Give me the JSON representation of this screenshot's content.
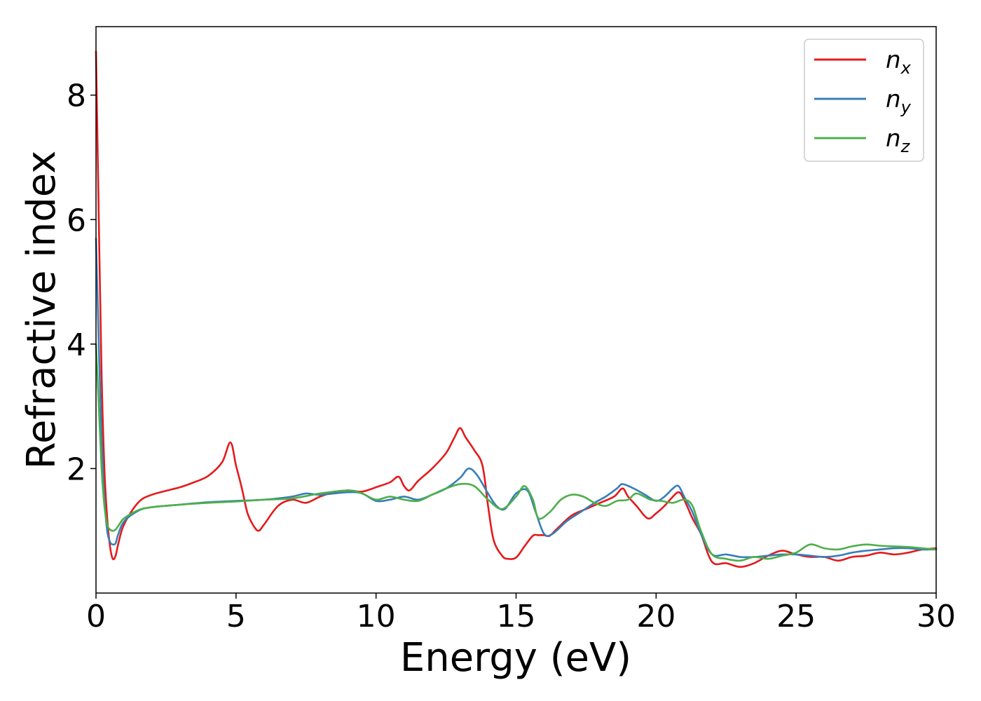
{
  "chart_data": {
    "type": "line",
    "title": "",
    "xlabel": "Energy (eV)",
    "ylabel": "Refractive index",
    "xlim": [
      0,
      30
    ],
    "ylim": [
      0,
      9.1
    ],
    "xticks": [
      0,
      5,
      10,
      15,
      20,
      25,
      30
    ],
    "xtick_labels": [
      "0",
      "5",
      "10",
      "15",
      "20",
      "25",
      "30"
    ],
    "yticks": [
      2,
      4,
      6,
      8
    ],
    "ytick_labels": [
      "2",
      "4",
      "6",
      "8"
    ],
    "grid": false,
    "legend_position": "top-right",
    "series": [
      {
        "name": "n",
        "subscript": "x",
        "color": "#e41a1c",
        "x": [
          0,
          0.1,
          0.2,
          0.3,
          0.4,
          0.5,
          0.6,
          0.7,
          0.8,
          1.0,
          1.5,
          2,
          3,
          3.5,
          4,
          4.5,
          4.8,
          5.0,
          5.2,
          5.4,
          5.6,
          5.8,
          6.0,
          6.5,
          7,
          7.5,
          8,
          8.5,
          9,
          9.5,
          10,
          10.5,
          10.8,
          11,
          11.2,
          11.5,
          12,
          12.5,
          12.8,
          13.0,
          13.2,
          13.5,
          13.8,
          14,
          14.2,
          14.5,
          14.7,
          15,
          15.3,
          15.6,
          15.8,
          16.0,
          16.2,
          16.5,
          17,
          17.5,
          18,
          18.5,
          18.8,
          19,
          19.3,
          19.7,
          20,
          20.3,
          20.5,
          20.8,
          21,
          21.3,
          21.6,
          22,
          22.5,
          23,
          23.5,
          24,
          24.5,
          25,
          25.5,
          26,
          26.5,
          27,
          27.5,
          28,
          28.5,
          29,
          29.5,
          30
        ],
        "y": [
          8.7,
          6.0,
          3.5,
          2.0,
          1.2,
          0.75,
          0.55,
          0.6,
          0.8,
          1.1,
          1.45,
          1.58,
          1.7,
          1.78,
          1.88,
          2.1,
          2.42,
          2.05,
          1.7,
          1.3,
          1.1,
          1.0,
          1.1,
          1.4,
          1.5,
          1.45,
          1.55,
          1.62,
          1.65,
          1.63,
          1.7,
          1.78,
          1.87,
          1.72,
          1.65,
          1.8,
          2.0,
          2.25,
          2.5,
          2.65,
          2.5,
          2.3,
          2.05,
          1.4,
          0.85,
          0.6,
          0.55,
          0.57,
          0.75,
          0.92,
          0.93,
          0.93,
          0.92,
          1.05,
          1.25,
          1.35,
          1.45,
          1.55,
          1.68,
          1.55,
          1.4,
          1.2,
          1.28,
          1.4,
          1.5,
          1.62,
          1.5,
          1.2,
          0.95,
          0.5,
          0.48,
          0.42,
          0.48,
          0.6,
          0.68,
          0.62,
          0.58,
          0.58,
          0.52,
          0.58,
          0.6,
          0.65,
          0.62,
          0.65,
          0.7,
          0.72
        ]
      },
      {
        "name": "n",
        "subscript": "y",
        "color": "#377eb8",
        "x": [
          0,
          0.1,
          0.2,
          0.3,
          0.4,
          0.5,
          0.6,
          0.7,
          0.8,
          1.0,
          1.5,
          2,
          3,
          4,
          5,
          6,
          7,
          7.5,
          8,
          9,
          9.5,
          10,
          10.5,
          11,
          11.5,
          12,
          12.5,
          13,
          13.3,
          13.6,
          14,
          14.3,
          14.6,
          15,
          15.4,
          15.7,
          16.0,
          16.3,
          16.8,
          17.3,
          17.8,
          18.2,
          18.6,
          18.8,
          19.2,
          19.6,
          20,
          20.3,
          20.6,
          20.8,
          21.0,
          21.3,
          21.6,
          22,
          22.5,
          23,
          23.5,
          24,
          24.5,
          25,
          25.5,
          26,
          26.5,
          27,
          27.5,
          28,
          28.5,
          29,
          29.5,
          30
        ],
        "y": [
          5.7,
          4.0,
          2.5,
          1.5,
          1.0,
          0.82,
          0.78,
          0.8,
          0.95,
          1.15,
          1.32,
          1.38,
          1.42,
          1.46,
          1.48,
          1.5,
          1.55,
          1.6,
          1.58,
          1.62,
          1.6,
          1.48,
          1.5,
          1.55,
          1.5,
          1.58,
          1.68,
          1.85,
          2.0,
          1.9,
          1.6,
          1.4,
          1.35,
          1.6,
          1.65,
          1.3,
          0.95,
          0.95,
          1.15,
          1.3,
          1.45,
          1.55,
          1.68,
          1.75,
          1.68,
          1.58,
          1.48,
          1.55,
          1.68,
          1.72,
          1.55,
          1.3,
          0.95,
          0.62,
          0.62,
          0.58,
          0.58,
          0.6,
          0.62,
          0.62,
          0.6,
          0.58,
          0.6,
          0.65,
          0.68,
          0.7,
          0.72,
          0.72,
          0.7,
          0.7
        ]
      },
      {
        "name": "n",
        "subscript": "z",
        "color": "#4daf4a",
        "x": [
          0,
          0.1,
          0.2,
          0.3,
          0.4,
          0.5,
          0.6,
          0.7,
          0.8,
          1.0,
          1.5,
          2,
          3,
          4,
          5,
          6,
          7,
          8,
          9,
          9.5,
          10,
          10.5,
          11,
          11.5,
          12,
          12.5,
          13,
          13.5,
          14,
          14.5,
          15,
          15.3,
          15.6,
          15.8,
          16.2,
          16.6,
          17.0,
          17.4,
          17.8,
          18.2,
          18.6,
          19.0,
          19.3,
          19.8,
          20.2,
          20.6,
          21.0,
          21.3,
          21.6,
          22,
          22.5,
          23,
          23.5,
          24,
          24.5,
          25,
          25.5,
          26,
          26.5,
          27,
          27.5,
          28,
          28.5,
          29,
          29.5,
          30
        ],
        "y": [
          4.0,
          3.0,
          2.0,
          1.4,
          1.1,
          1.02,
          1.0,
          1.02,
          1.08,
          1.2,
          1.33,
          1.38,
          1.42,
          1.45,
          1.47,
          1.5,
          1.52,
          1.6,
          1.65,
          1.6,
          1.5,
          1.55,
          1.5,
          1.48,
          1.58,
          1.68,
          1.75,
          1.72,
          1.5,
          1.35,
          1.55,
          1.72,
          1.5,
          1.2,
          1.3,
          1.5,
          1.58,
          1.55,
          1.45,
          1.4,
          1.48,
          1.5,
          1.6,
          1.5,
          1.48,
          1.45,
          1.5,
          1.4,
          1.0,
          0.62,
          0.55,
          0.52,
          0.58,
          0.55,
          0.6,
          0.65,
          0.78,
          0.72,
          0.7,
          0.75,
          0.78,
          0.76,
          0.75,
          0.74,
          0.72,
          0.7
        ]
      }
    ]
  }
}
